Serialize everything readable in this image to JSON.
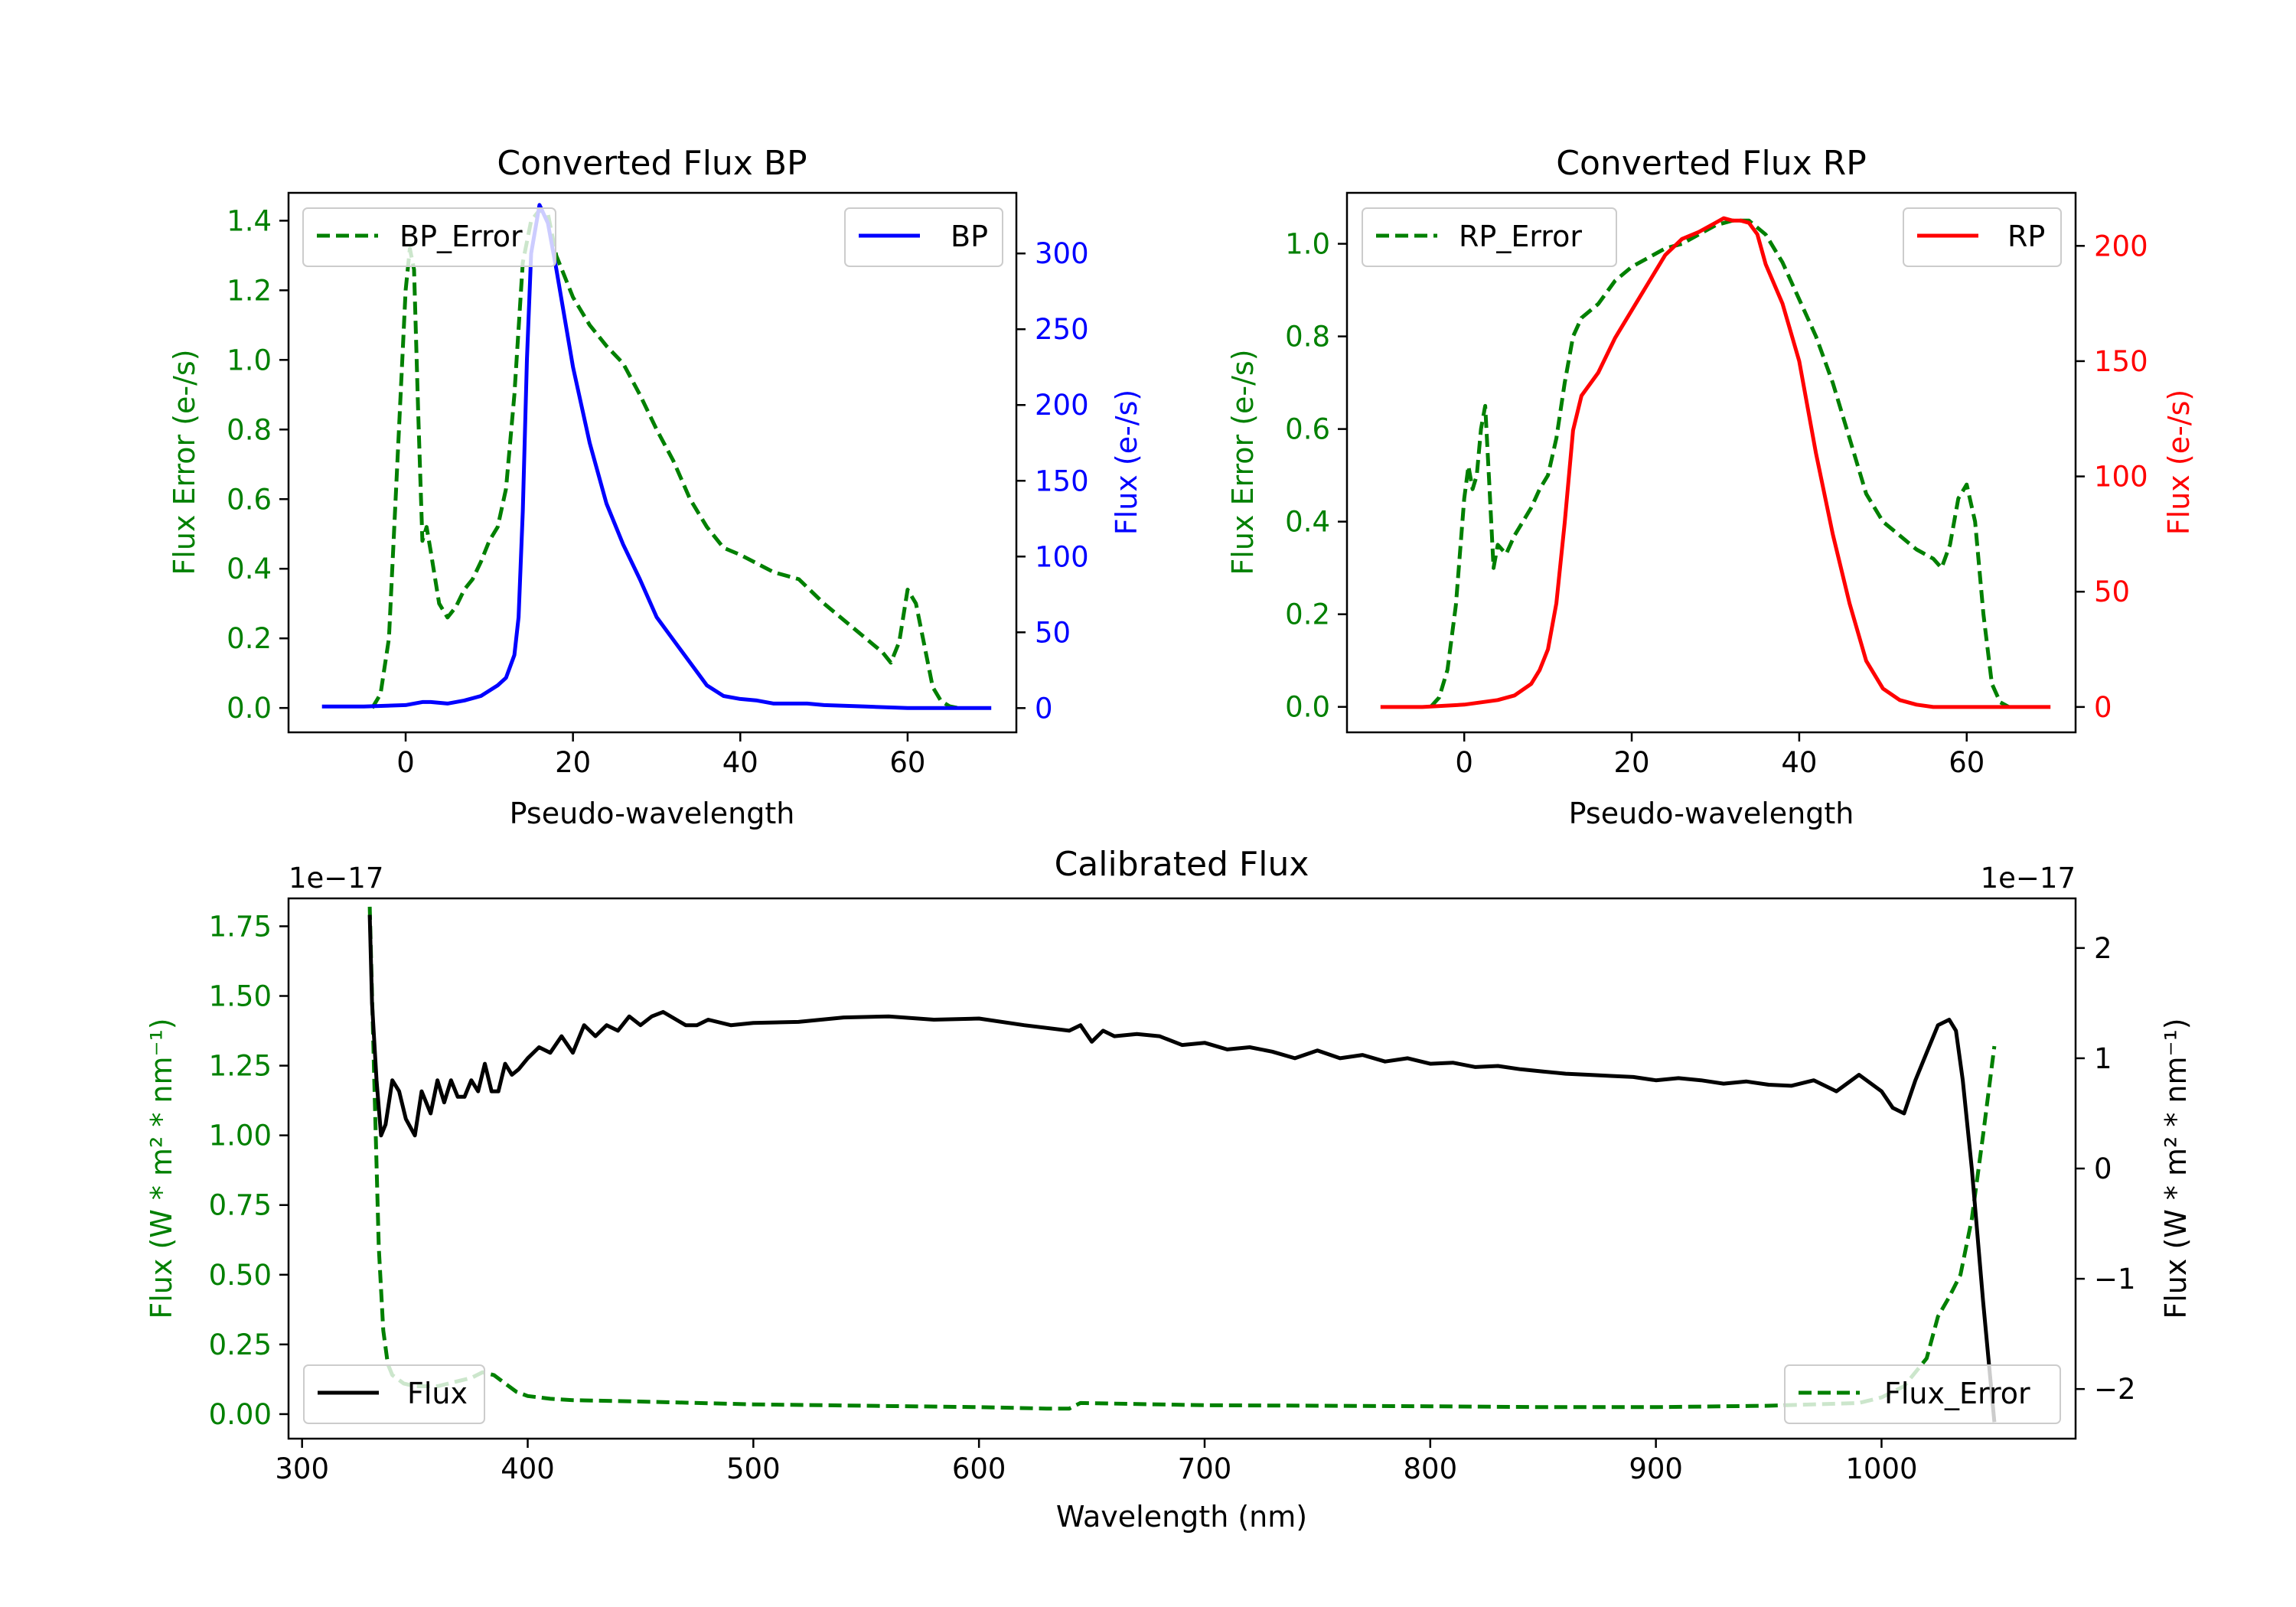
{
  "chart_data": [
    {
      "id": "bp",
      "type": "line",
      "title": "Converted Flux BP",
      "xlabel": "Pseudo-wavelength",
      "ylabel_left": "Flux Error (e-/s)",
      "ylabel_right": "Flux (e-/s)",
      "xlim": [
        -14,
        73
      ],
      "ylim_left": [
        -0.07,
        1.48
      ],
      "ylim_right": [
        -16,
        340
      ],
      "xticks": [
        0,
        20,
        40,
        60
      ],
      "yticks_left": [
        "0.0",
        "0.2",
        "0.4",
        "0.6",
        "0.8",
        "1.0",
        "1.2",
        "1.4"
      ],
      "yticks_right": [
        "0",
        "50",
        "100",
        "150",
        "200",
        "250",
        "300"
      ],
      "colors": {
        "left": "#008000",
        "right": "#0000ff"
      },
      "legend_left": {
        "label": "BP_Error",
        "placement": "upper left"
      },
      "legend_right": {
        "label": "BP",
        "placement": "upper right"
      },
      "series": [
        {
          "name": "BP_Error",
          "axis": "left",
          "style": "dashed",
          "color": "#008000",
          "x": [
            -4,
            -3,
            -2,
            -1,
            0,
            0.5,
            1,
            1.5,
            2,
            2.5,
            3,
            4,
            5,
            6,
            7,
            8,
            9,
            10,
            11,
            12,
            13,
            14,
            15,
            16,
            17,
            18,
            20,
            22,
            24,
            26,
            28,
            30,
            32,
            34,
            36,
            38,
            40,
            44,
            47,
            50,
            54,
            57,
            58,
            59,
            60,
            61,
            62,
            63,
            64,
            65,
            66
          ],
          "values": [
            0,
            0.04,
            0.2,
            0.7,
            1.2,
            1.32,
            1.26,
            0.85,
            0.48,
            0.52,
            0.45,
            0.3,
            0.26,
            0.29,
            0.34,
            0.37,
            0.42,
            0.48,
            0.52,
            0.63,
            0.9,
            1.28,
            1.4,
            1.43,
            1.42,
            1.3,
            1.18,
            1.1,
            1.04,
            0.99,
            0.9,
            0.8,
            0.71,
            0.6,
            0.52,
            0.46,
            0.44,
            0.39,
            0.37,
            0.3,
            0.22,
            0.16,
            0.13,
            0.19,
            0.34,
            0.3,
            0.18,
            0.06,
            0.02,
            0.005,
            0
          ]
        },
        {
          "name": "BP",
          "axis": "right",
          "style": "solid",
          "color": "#0000ff",
          "x": [
            -10,
            -5,
            0,
            2,
            3,
            5,
            7,
            9,
            11,
            12,
            13,
            13.5,
            14,
            14.5,
            15,
            16,
            17,
            18,
            20,
            22,
            24,
            26,
            28,
            30,
            32,
            34,
            36,
            38,
            40,
            42,
            44,
            46,
            48,
            50,
            55,
            60,
            65,
            70
          ],
          "values": [
            1,
            1,
            2,
            4,
            4,
            3,
            5,
            8,
            15,
            20,
            35,
            60,
            130,
            230,
            300,
            332,
            320,
            290,
            225,
            175,
            135,
            108,
            85,
            60,
            45,
            30,
            15,
            8,
            6,
            5,
            3,
            3,
            3,
            2,
            1,
            0,
            0,
            0
          ]
        }
      ]
    },
    {
      "id": "rp",
      "type": "line",
      "title": "Converted Flux RP",
      "xlabel": "Pseudo-wavelength",
      "ylabel_left": "Flux Error (e-/s)",
      "ylabel_right": "Flux (e-/s)",
      "xlim": [
        -14,
        73
      ],
      "ylim_left": [
        -0.055,
        1.11
      ],
      "ylim_right": [
        -11,
        223
      ],
      "xticks": [
        0,
        20,
        40,
        60
      ],
      "yticks_left": [
        "0.0",
        "0.2",
        "0.4",
        "0.6",
        "0.8",
        "1.0"
      ],
      "yticks_right": [
        "0",
        "50",
        "100",
        "150",
        "200"
      ],
      "colors": {
        "left": "#008000",
        "right": "#ff0000"
      },
      "legend_left": {
        "label": "RP_Error",
        "placement": "upper left"
      },
      "legend_right": {
        "label": "RP",
        "placement": "upper right"
      },
      "series": [
        {
          "name": "RP_Error",
          "axis": "left",
          "style": "dashed",
          "color": "#008000",
          "x": [
            -4,
            -3,
            -2,
            -1,
            0,
            0.5,
            1,
            1.5,
            2,
            2.5,
            3,
            3.5,
            4,
            5,
            6,
            7,
            8,
            9,
            10,
            11,
            12,
            13,
            14,
            16,
            18,
            20,
            22,
            24,
            26,
            28,
            30,
            32,
            34,
            36,
            38,
            40,
            42,
            44,
            46,
            48,
            50,
            52,
            54,
            55,
            56,
            57,
            58,
            59,
            60,
            61,
            62,
            63,
            64,
            65
          ],
          "values": [
            0,
            0.02,
            0.08,
            0.22,
            0.45,
            0.52,
            0.47,
            0.5,
            0.6,
            0.65,
            0.48,
            0.3,
            0.35,
            0.33,
            0.37,
            0.4,
            0.43,
            0.47,
            0.5,
            0.58,
            0.7,
            0.8,
            0.84,
            0.87,
            0.92,
            0.95,
            0.97,
            0.99,
            1.0,
            1.02,
            1.04,
            1.05,
            1.05,
            1.02,
            0.96,
            0.88,
            0.8,
            0.7,
            0.58,
            0.46,
            0.4,
            0.37,
            0.34,
            0.33,
            0.32,
            0.3,
            0.35,
            0.45,
            0.48,
            0.4,
            0.2,
            0.05,
            0.01,
            0
          ]
        },
        {
          "name": "RP",
          "axis": "right",
          "style": "solid",
          "color": "#ff0000",
          "x": [
            -10,
            -5,
            0,
            2,
            4,
            6,
            8,
            9,
            10,
            11,
            12,
            13,
            14,
            15,
            16,
            18,
            20,
            22,
            24,
            26,
            28,
            30,
            31,
            32,
            33,
            34,
            35,
            36,
            38,
            40,
            42,
            44,
            46,
            48,
            50,
            52,
            54,
            56,
            58,
            60,
            65,
            70
          ],
          "values": [
            0,
            0,
            1,
            2,
            3,
            5,
            10,
            16,
            25,
            45,
            80,
            120,
            135,
            140,
            145,
            160,
            172,
            184,
            196,
            203,
            206,
            210,
            212,
            211,
            211,
            210,
            205,
            192,
            175,
            150,
            110,
            75,
            45,
            20,
            8,
            3,
            1,
            0,
            0,
            0,
            0,
            0
          ]
        }
      ]
    },
    {
      "id": "cal",
      "type": "line",
      "title": "Calibrated Flux",
      "xlabel": "Wavelength (nm)",
      "ylabel_left": "Flux (W * m² * nm⁻¹)",
      "ylabel_right": "Flux (W * m² * nm⁻¹)",
      "offset_left": "1e−17",
      "offset_right": "1e−17",
      "xlim": [
        294,
        1086
      ],
      "ylim_left": [
        -0.088,
        1.85
      ],
      "ylim_right": [
        -2.45,
        2.45
      ],
      "xticks": [
        300,
        400,
        500,
        600,
        700,
        800,
        900,
        1000
      ],
      "yticks_left": [
        "0.00",
        "0.25",
        "0.50",
        "0.75",
        "1.00",
        "1.25",
        "1.50",
        "1.75"
      ],
      "yticks_right": [
        "−2",
        "−1",
        "0",
        "1",
        "2"
      ],
      "colors": {
        "left": "#008000",
        "right": "#000000"
      },
      "legend_left": {
        "label": "Flux",
        "placement": "lower left"
      },
      "legend_right": {
        "label": "Flux_Error",
        "placement": "lower right"
      },
      "series": [
        {
          "name": "Flux_Error",
          "axis": "left",
          "style": "dashed",
          "color": "#008000",
          "x": [
            330,
            332,
            334,
            336,
            338,
            340,
            345,
            350,
            355,
            360,
            365,
            370,
            375,
            380,
            385,
            390,
            395,
            400,
            410,
            420,
            450,
            500,
            550,
            600,
            630,
            640,
            645,
            700,
            750,
            800,
            850,
            900,
            950,
            990,
            1000,
            1010,
            1020,
            1025,
            1030,
            1035,
            1040,
            1045,
            1050
          ],
          "values": [
            1.82,
            1.2,
            0.6,
            0.3,
            0.18,
            0.14,
            0.11,
            0.1,
            0.1,
            0.1,
            0.11,
            0.12,
            0.13,
            0.15,
            0.14,
            0.11,
            0.08,
            0.065,
            0.055,
            0.05,
            0.045,
            0.035,
            0.03,
            0.025,
            0.02,
            0.02,
            0.04,
            0.032,
            0.03,
            0.028,
            0.025,
            0.025,
            0.03,
            0.04,
            0.06,
            0.1,
            0.2,
            0.35,
            0.42,
            0.5,
            0.7,
            1.0,
            1.32
          ]
        },
        {
          "name": "Flux",
          "axis": "right",
          "style": "solid",
          "color": "#000000",
          "x": [
            330,
            331,
            333,
            335,
            337,
            340,
            343,
            346,
            350,
            353,
            357,
            360,
            363,
            366,
            369,
            372,
            375,
            378,
            381,
            384,
            387,
            390,
            393,
            396,
            400,
            405,
            410,
            415,
            420,
            425,
            430,
            435,
            440,
            445,
            450,
            455,
            460,
            465,
            470,
            475,
            480,
            490,
            500,
            520,
            540,
            560,
            580,
            600,
            620,
            640,
            645,
            650,
            655,
            660,
            670,
            680,
            690,
            700,
            710,
            720,
            730,
            740,
            750,
            760,
            770,
            780,
            790,
            800,
            810,
            820,
            830,
            840,
            850,
            860,
            870,
            880,
            890,
            900,
            910,
            920,
            930,
            940,
            950,
            960,
            970,
            980,
            990,
            1000,
            1005,
            1010,
            1015,
            1020,
            1025,
            1030,
            1033,
            1036,
            1040,
            1045,
            1050
          ],
          "values": [
            2.3,
            1.5,
            0.8,
            0.3,
            0.4,
            0.8,
            0.7,
            0.45,
            0.3,
            0.7,
            0.5,
            0.8,
            0.6,
            0.8,
            0.65,
            0.65,
            0.8,
            0.7,
            0.95,
            0.7,
            0.7,
            0.95,
            0.85,
            0.9,
            1.0,
            1.1,
            1.05,
            1.2,
            1.05,
            1.3,
            1.2,
            1.3,
            1.25,
            1.38,
            1.3,
            1.38,
            1.42,
            1.36,
            1.3,
            1.3,
            1.35,
            1.3,
            1.32,
            1.33,
            1.37,
            1.38,
            1.35,
            1.36,
            1.3,
            1.25,
            1.3,
            1.15,
            1.25,
            1.2,
            1.22,
            1.2,
            1.12,
            1.14,
            1.08,
            1.1,
            1.06,
            1.0,
            1.07,
            1.0,
            1.03,
            0.97,
            1.0,
            0.95,
            0.96,
            0.92,
            0.93,
            0.9,
            0.88,
            0.86,
            0.85,
            0.84,
            0.83,
            0.8,
            0.82,
            0.8,
            0.77,
            0.79,
            0.76,
            0.75,
            0.8,
            0.7,
            0.85,
            0.7,
            0.55,
            0.5,
            0.8,
            1.05,
            1.3,
            1.35,
            1.25,
            0.8,
            0.0,
            -1.2,
            -2.3
          ]
        }
      ]
    }
  ]
}
